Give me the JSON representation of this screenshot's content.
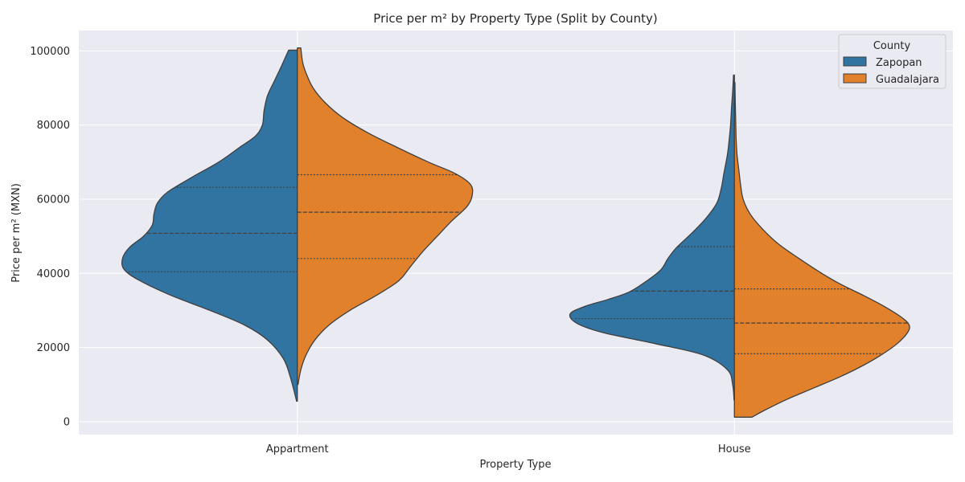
{
  "chart_data": {
    "type": "violin",
    "title": "Price per m² by Property Type (Split by County)",
    "xlabel": "Property Type",
    "ylabel": "Price per m² (MXN)",
    "ylim": [
      -3500,
      105500
    ],
    "yticks": [
      0,
      20000,
      40000,
      60000,
      80000,
      100000
    ],
    "categories": [
      "Appartment",
      "House"
    ],
    "legend": {
      "title": "County",
      "position": "top-right"
    },
    "grid": true,
    "series": [
      {
        "name": "Zapopan",
        "color": "#3274a1",
        "violins": [
          {
            "category": "Appartment",
            "min": 5500,
            "max": 100200,
            "q1": 40400,
            "median": 50800,
            "q3": 63200,
            "density": [
              [
                5500,
                0.004
              ],
              [
                12000,
                0.04
              ],
              [
                17000,
                0.08
              ],
              [
                22000,
                0.17
              ],
              [
                26000,
                0.3
              ],
              [
                30000,
                0.5
              ],
              [
                34000,
                0.72
              ],
              [
                38000,
                0.9
              ],
              [
                41000,
                0.99
              ],
              [
                44000,
                1.0
              ],
              [
                47000,
                0.96
              ],
              [
                50000,
                0.88
              ],
              [
                53000,
                0.83
              ],
              [
                56000,
                0.82
              ],
              [
                59000,
                0.8
              ],
              [
                62000,
                0.74
              ],
              [
                66000,
                0.6
              ],
              [
                70000,
                0.45
              ],
              [
                74000,
                0.33
              ],
              [
                77000,
                0.24
              ],
              [
                80000,
                0.2
              ],
              [
                84000,
                0.19
              ],
              [
                88000,
                0.17
              ],
              [
                92000,
                0.13
              ],
              [
                96000,
                0.09
              ],
              [
                100200,
                0.05
              ]
            ]
          },
          {
            "category": "House",
            "min": 5800,
            "max": 93500,
            "q1": 27800,
            "median": 35200,
            "q3": 47200,
            "density": [
              [
                5800,
                0.002
              ],
              [
                10000,
                0.01
              ],
              [
                14000,
                0.04
              ],
              [
                18000,
                0.18
              ],
              [
                21000,
                0.45
              ],
              [
                24000,
                0.75
              ],
              [
                26500,
                0.9
              ],
              [
                29000,
                0.94
              ],
              [
                31000,
                0.86
              ],
              [
                33000,
                0.72
              ],
              [
                35000,
                0.6
              ],
              [
                38000,
                0.5
              ],
              [
                41000,
                0.42
              ],
              [
                44000,
                0.38
              ],
              [
                47000,
                0.33
              ],
              [
                51000,
                0.24
              ],
              [
                55000,
                0.16
              ],
              [
                59000,
                0.1
              ],
              [
                63000,
                0.075
              ],
              [
                67000,
                0.06
              ],
              [
                72000,
                0.04
              ],
              [
                76000,
                0.03
              ],
              [
                80000,
                0.022
              ],
              [
                85000,
                0.016
              ],
              [
                89000,
                0.01
              ],
              [
                93500,
                0.005
              ]
            ]
          }
        ]
      },
      {
        "name": "Guadalajara",
        "color": "#e1812c",
        "violins": [
          {
            "category": "Appartment",
            "min": 10000,
            "max": 100800,
            "q1": 44000,
            "median": 56500,
            "q3": 66600,
            "density": [
              [
                10000,
                0.004
              ],
              [
                14000,
                0.02
              ],
              [
                18000,
                0.05
              ],
              [
                22000,
                0.1
              ],
              [
                26000,
                0.18
              ],
              [
                30000,
                0.3
              ],
              [
                34000,
                0.45
              ],
              [
                38000,
                0.58
              ],
              [
                42000,
                0.65
              ],
              [
                46000,
                0.72
              ],
              [
                50000,
                0.8
              ],
              [
                54000,
                0.88
              ],
              [
                58000,
                0.97
              ],
              [
                61000,
                1.0
              ],
              [
                64000,
                0.99
              ],
              [
                67000,
                0.9
              ],
              [
                70000,
                0.75
              ],
              [
                74000,
                0.57
              ],
              [
                78000,
                0.4
              ],
              [
                82000,
                0.26
              ],
              [
                86000,
                0.16
              ],
              [
                90000,
                0.09
              ],
              [
                94000,
                0.05
              ],
              [
                97000,
                0.03
              ],
              [
                100800,
                0.02
              ]
            ]
          },
          {
            "category": "House",
            "min": 1200,
            "max": 91500,
            "q1": 18300,
            "median": 26600,
            "q3": 35800,
            "density": [
              [
                1200,
                0.1
              ],
              [
                3000,
                0.17
              ],
              [
                6000,
                0.3
              ],
              [
                9000,
                0.45
              ],
              [
                12000,
                0.6
              ],
              [
                15000,
                0.73
              ],
              [
                18000,
                0.84
              ],
              [
                21000,
                0.93
              ],
              [
                24000,
                0.99
              ],
              [
                26000,
                1.0
              ],
              [
                28000,
                0.96
              ],
              [
                31000,
                0.86
              ],
              [
                34000,
                0.74
              ],
              [
                37000,
                0.61
              ],
              [
                40000,
                0.5
              ],
              [
                44000,
                0.37
              ],
              [
                48000,
                0.25
              ],
              [
                52000,
                0.16
              ],
              [
                56000,
                0.09
              ],
              [
                60000,
                0.05
              ],
              [
                64000,
                0.035
              ],
              [
                68000,
                0.025
              ],
              [
                72000,
                0.015
              ],
              [
                76000,
                0.01
              ],
              [
                80000,
                0.008
              ],
              [
                86000,
                0.005
              ],
              [
                91500,
                0.003
              ]
            ]
          }
        ]
      }
    ]
  }
}
